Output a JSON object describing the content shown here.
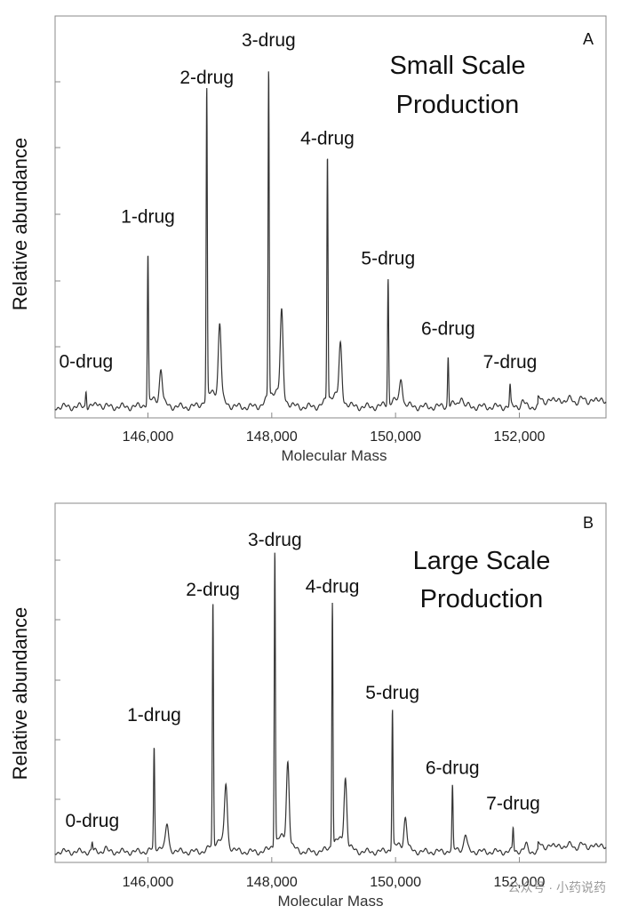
{
  "chart_data": [
    {
      "type": "line",
      "panel": "A",
      "scale_title": [
        "Small Scale",
        "Production"
      ],
      "xlabel": "Molecular Mass",
      "ylabel": "Relative abundance",
      "xlim": [
        144500,
        153400
      ],
      "ylim": [
        0,
        100
      ],
      "xticks": [
        146000,
        148000,
        150000,
        152000
      ],
      "xtick_labels": [
        "146,000",
        "148,000",
        "150,000",
        "152,000"
      ],
      "peaks": [
        {
          "label": "0-drug",
          "x": 145000,
          "y": 5,
          "shoulder_y": 1.2
        },
        {
          "label": "1-drug",
          "x": 146000,
          "y": 45,
          "shoulder_y": 10
        },
        {
          "label": "2-drug",
          "x": 146950,
          "y": 94,
          "shoulder_y": 22
        },
        {
          "label": "3-drug",
          "x": 147950,
          "y": 100,
          "shoulder_y": 25
        },
        {
          "label": "4-drug",
          "x": 148900,
          "y": 75,
          "shoulder_y": 16
        },
        {
          "label": "5-drug",
          "x": 149880,
          "y": 38,
          "shoulder_y": 7.5
        },
        {
          "label": "6-drug",
          "x": 150850,
          "y": 15,
          "shoulder_y": 3
        },
        {
          "label": "7-drug",
          "x": 151850,
          "y": 6,
          "shoulder_y": 1.5
        }
      ],
      "grid": false
    },
    {
      "type": "line",
      "panel": "B",
      "scale_title": [
        "Large Scale",
        "Production"
      ],
      "xlabel": "Molecular Mass",
      "ylabel": "Relative abundance",
      "xlim": [
        144500,
        153400
      ],
      "ylim": [
        0,
        100
      ],
      "xticks": [
        146000,
        148000,
        150000,
        152000
      ],
      "xtick_labels": [
        "146,000",
        "148,000",
        "150,000",
        "152,000"
      ],
      "peaks": [
        {
          "label": "0-drug",
          "x": 145100,
          "y": 3,
          "shoulder_y": 1
        },
        {
          "label": "1-drug",
          "x": 146100,
          "y": 34,
          "shoulder_y": 8
        },
        {
          "label": "2-drug",
          "x": 147050,
          "y": 82,
          "shoulder_y": 20
        },
        {
          "label": "3-drug",
          "x": 148050,
          "y": 100,
          "shoulder_y": 27
        },
        {
          "label": "4-drug",
          "x": 148980,
          "y": 83,
          "shoulder_y": 22
        },
        {
          "label": "5-drug",
          "x": 149950,
          "y": 47,
          "shoulder_y": 10
        },
        {
          "label": "6-drug",
          "x": 150920,
          "y": 21,
          "shoulder_y": 5
        },
        {
          "label": "7-drug",
          "x": 151900,
          "y": 8,
          "shoulder_y": 2
        }
      ],
      "grid": false
    }
  ],
  "watermark": "公众号 · 小药说药"
}
